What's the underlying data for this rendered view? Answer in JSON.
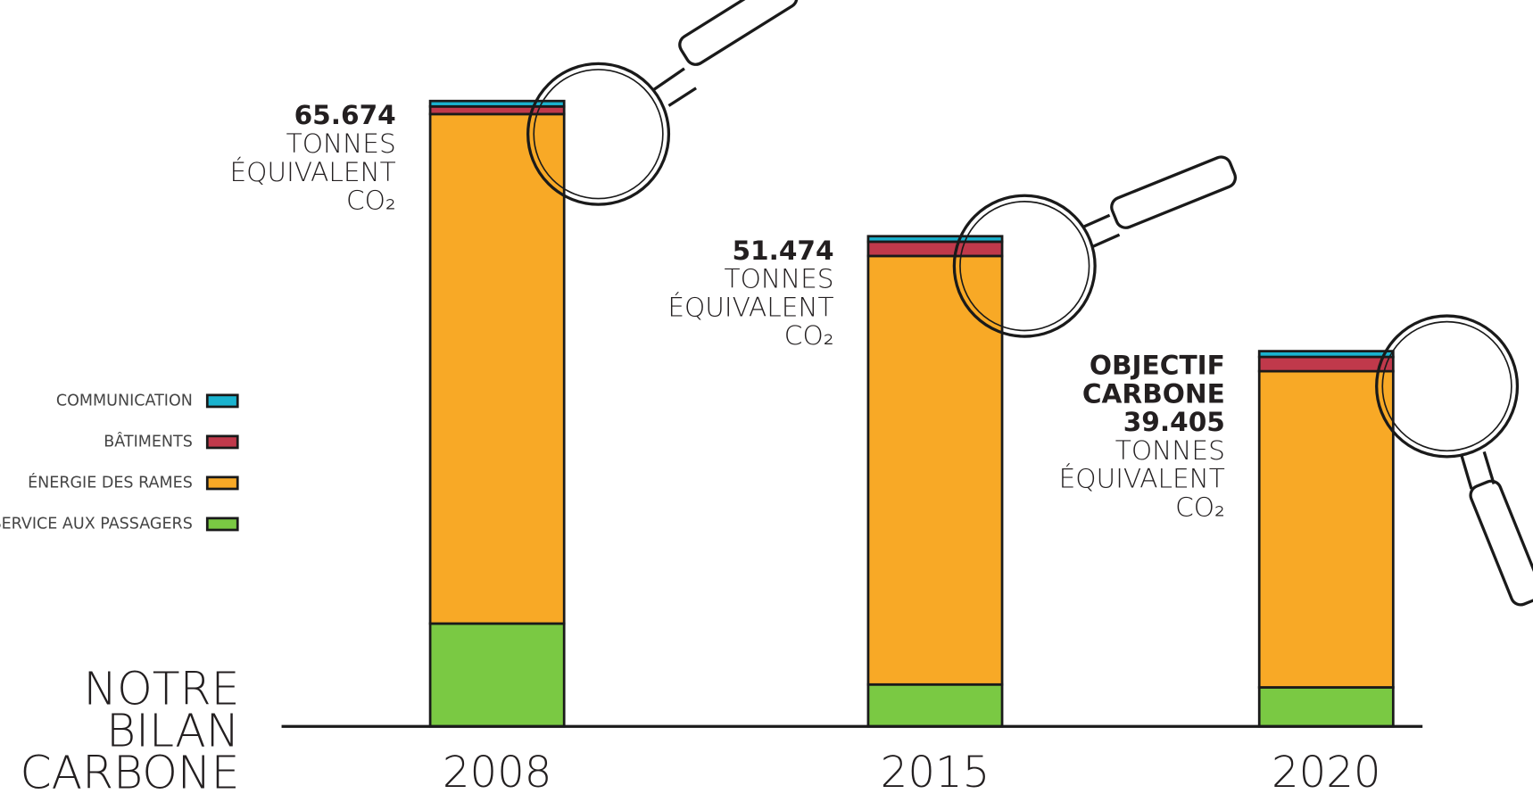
{
  "chart_data": {
    "type": "stacked_bar",
    "title": [
      "NOTRE",
      "BILAN",
      "CARBONE"
    ],
    "categories": [
      "2008",
      "2015",
      "2020"
    ],
    "series": [
      {
        "name": "SERVICE AUX PASSAGERS",
        "color": "#7ac943",
        "values": [
          10800,
          4400,
          4100
        ]
      },
      {
        "name": "ÉNERGIE DES RAMES",
        "color": "#f8a926",
        "values": [
          53500,
          45000,
          33200
        ]
      },
      {
        "name": "BÂTIMENTS",
        "color": "#c0394b",
        "values": [
          800,
          1500,
          1500
        ]
      },
      {
        "name": "COMMUNICATION",
        "color": "#1ab3cf",
        "values": [
          574,
          574,
          605
        ]
      }
    ],
    "totals": [
      65674,
      51474,
      39405
    ],
    "annotations": [
      {
        "bold": [
          "65.674"
        ],
        "text": [
          "TONNES",
          "ÉQUIVALENT",
          "CO₂"
        ]
      },
      {
        "bold": [
          "51.474"
        ],
        "text": [
          "TONNES",
          "ÉQUIVALENT",
          "CO₂"
        ]
      },
      {
        "bold": [
          "OBJECTIF",
          "CARBONE",
          "39.405"
        ],
        "text": [
          "TONNES",
          "ÉQUIVALENT",
          "CO₂"
        ]
      }
    ],
    "ylim": [
      0,
      66000
    ]
  }
}
